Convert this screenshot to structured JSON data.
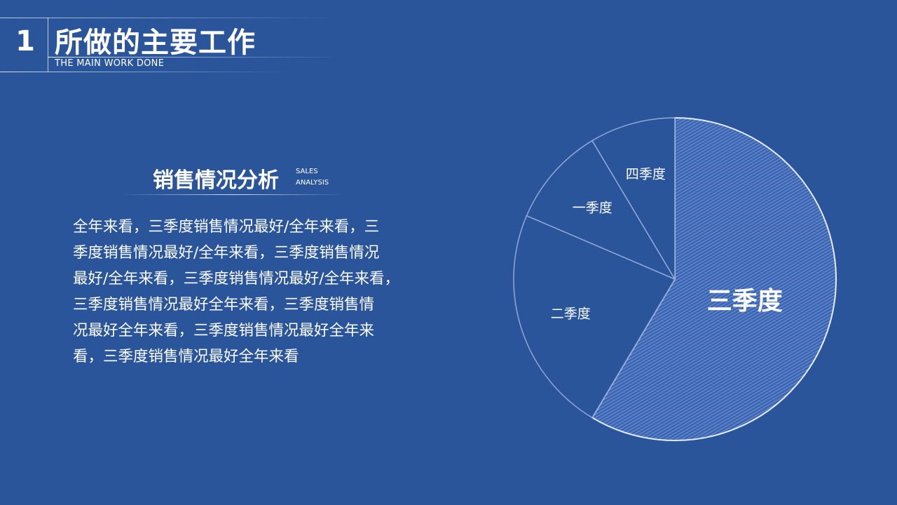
{
  "header": {
    "number": "1",
    "title": "所做的主要工作",
    "subtitle": "THE MAIN WORK DONE"
  },
  "section": {
    "title": "销售情况分析",
    "subtitle_line1": "SALES",
    "subtitle_line2": "ANALYSIS"
  },
  "paragraph": {
    "lines": [
      "全年来看，三季度销售情况最好/全年来看，三",
      "季度销售情况最好/全年来看，三季度销售情况",
      "最好/全年来看，三季度销售情况最好/全年来看，",
      "三季度销售情况最好全年来看，三季度销售情",
      "况最好全年来看，三季度销售情况最好全年来",
      "看，三季度销售情况最好全年来看"
    ]
  },
  "colors": {
    "background": "#2a559b",
    "highlight_slice": "#4f78c4",
    "text": "#ffffff"
  },
  "chart_data": {
    "type": "pie",
    "start": "top, clockwise",
    "categories": [
      "三季度",
      "二季度",
      "一季度",
      "四季度"
    ],
    "values": [
      8.2,
      3.2,
      1.4,
      1.2
    ],
    "highlighted": "三季度",
    "legend": "none"
  }
}
